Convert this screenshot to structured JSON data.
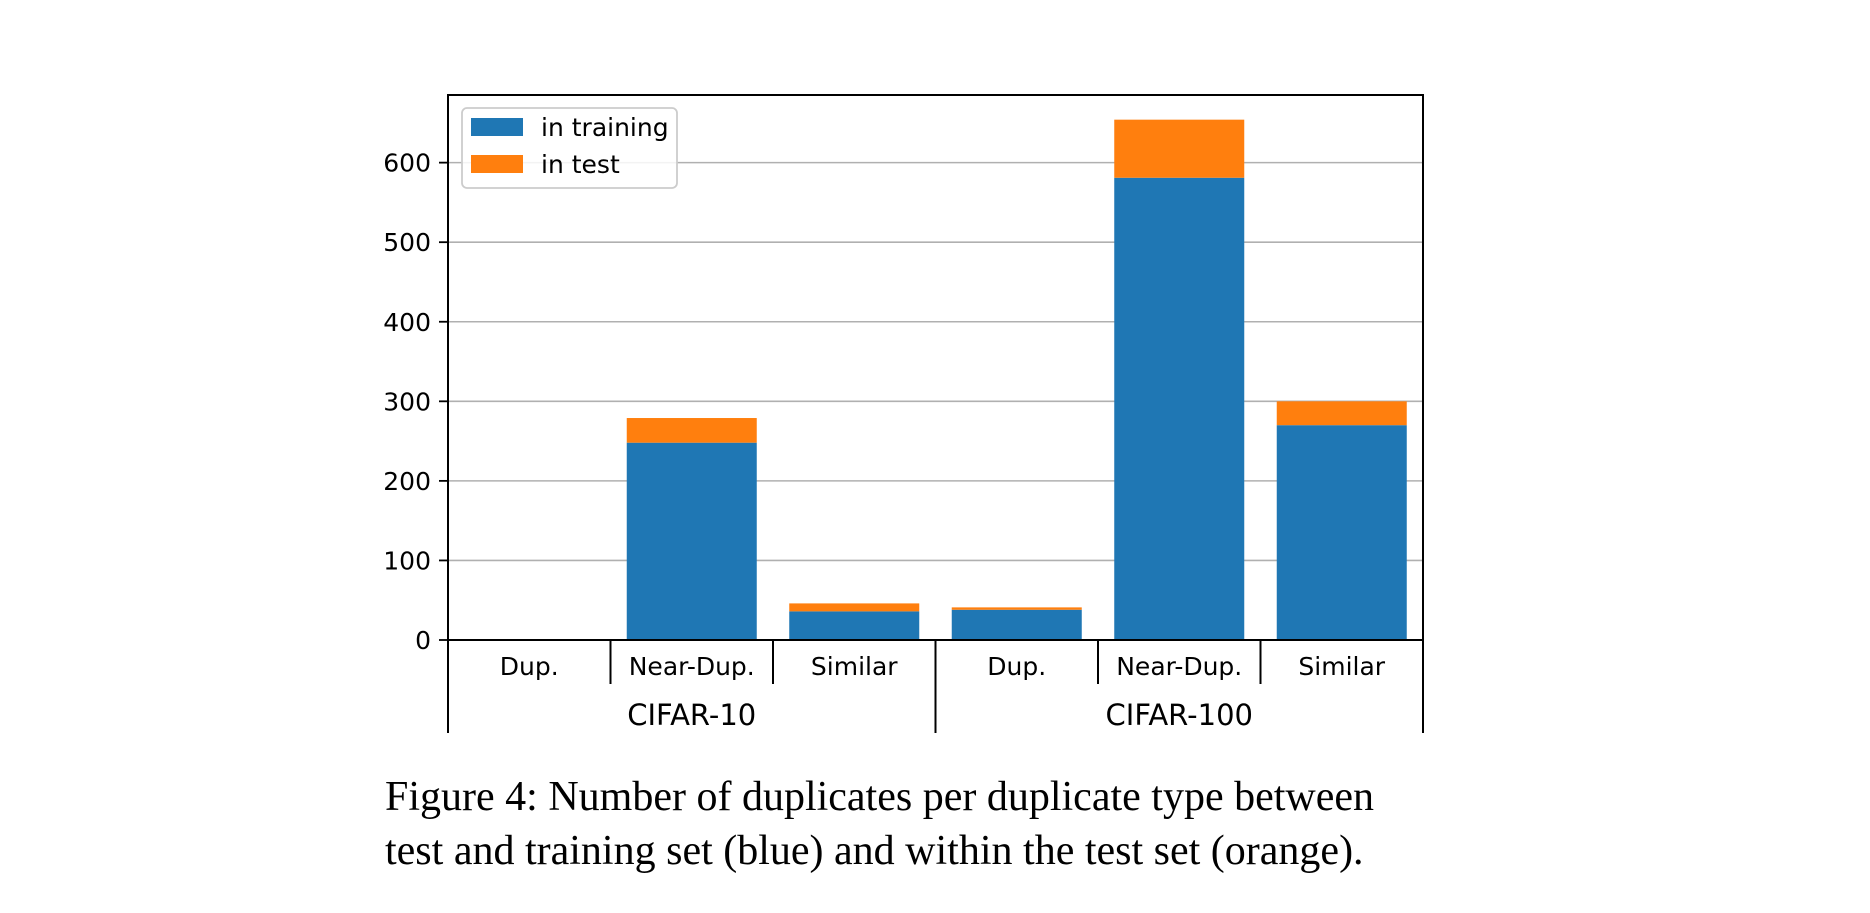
{
  "chart_data": {
    "type": "bar",
    "stacked": true,
    "groups": [
      {
        "label": "CIFAR-10",
        "categories": [
          "Dup.",
          "Near-Dup.",
          "Similar"
        ]
      },
      {
        "label": "CIFAR-100",
        "categories": [
          "Dup.",
          "Near-Dup.",
          "Similar"
        ]
      }
    ],
    "categories": [
      "Dup.",
      "Near-Dup.",
      "Similar",
      "Dup.",
      "Near-Dup.",
      "Similar"
    ],
    "series": [
      {
        "name": "in training",
        "color": "#1f77b4",
        "values": [
          0,
          248,
          36,
          38,
          581,
          270
        ]
      },
      {
        "name": "in test",
        "color": "#ff7f0e",
        "values": [
          0,
          31,
          10,
          3,
          73,
          30
        ]
      }
    ],
    "ylim": [
      0,
      685
    ],
    "yticks": [
      0,
      100,
      200,
      300,
      400,
      500,
      600
    ],
    "grid": true,
    "legend_position": "top-left"
  },
  "caption": {
    "line1": "Figure 4: Number of duplicates per duplicate type between",
    "line2": "test and training set (blue) and within the test set (orange)."
  }
}
